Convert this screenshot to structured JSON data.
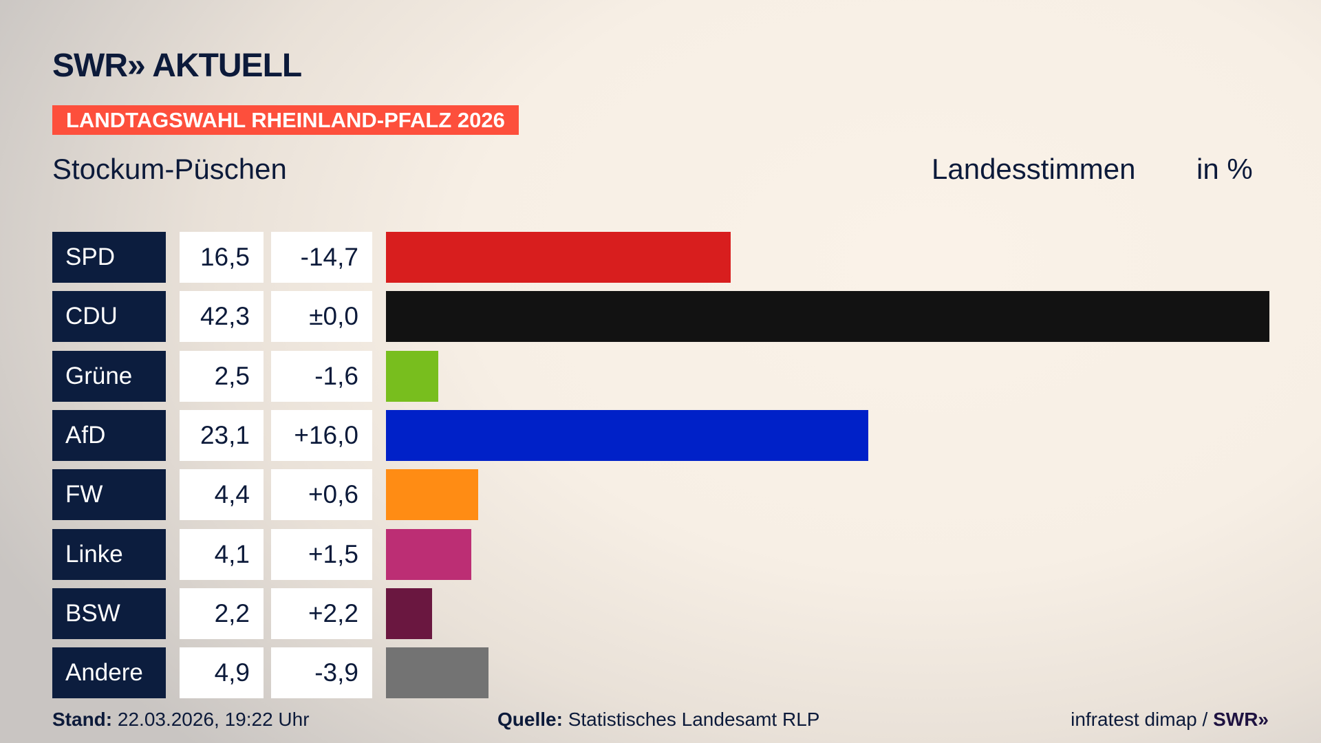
{
  "header": {
    "logo": "SWR» AKTUELL",
    "banner": "LANDTAGSWAHL RHEINLAND-PFALZ 2026",
    "place": "Stockum-Püschen",
    "measure": "Landesstimmen",
    "unit": "in %"
  },
  "chart_data": {
    "type": "bar",
    "orientation": "horizontal",
    "xlim": [
      0,
      42.3
    ],
    "categories": [
      "SPD",
      "CDU",
      "Grüne",
      "AfD",
      "FW",
      "Linke",
      "BSW",
      "Andere"
    ],
    "values": [
      16.5,
      42.3,
      2.5,
      23.1,
      4.4,
      4.1,
      2.2,
      4.9
    ],
    "value_labels": [
      "16,5",
      "42,3",
      "2,5",
      "23,1",
      "4,4",
      "4,1",
      "2,2",
      "4,9"
    ],
    "diff_labels": [
      "-14,7",
      "±0,0",
      "-1,6",
      "+16,0",
      "+0,6",
      "+1,5",
      "+2,2",
      "-3,9"
    ],
    "colors": [
      "#d81e1e",
      "#121212",
      "#78be1e",
      "#0021c8",
      "#ff8c14",
      "#bc2e74",
      "#6a1740",
      "#737373"
    ]
  },
  "footer": {
    "stand_label": "Stand:",
    "stand_value": "22.03.2026, 19:22 Uhr",
    "source_label": "Quelle:",
    "source_value": "Statistisches Landesamt RLP",
    "credit": "infratest dimap / ",
    "credit_logo": "SWR»"
  }
}
